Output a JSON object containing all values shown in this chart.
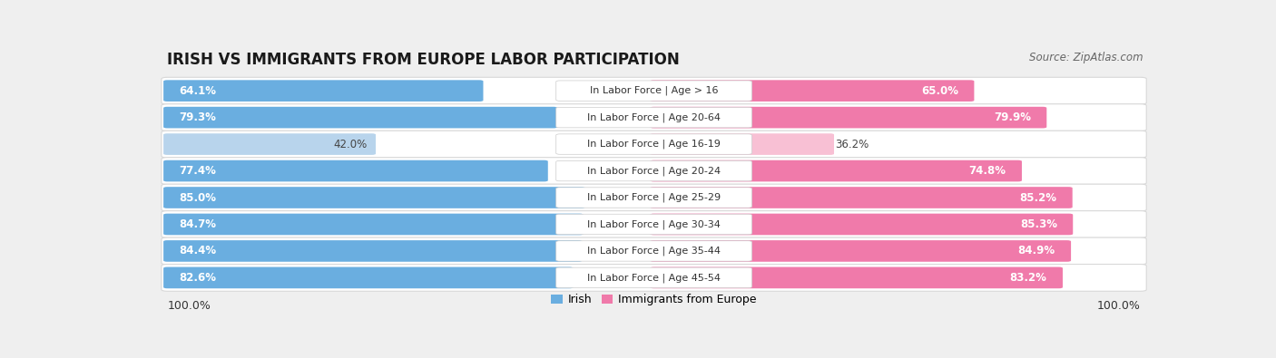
{
  "title": "IRISH VS IMMIGRANTS FROM EUROPE LABOR PARTICIPATION",
  "source": "Source: ZipAtlas.com",
  "categories": [
    "In Labor Force | Age > 16",
    "In Labor Force | Age 20-64",
    "In Labor Force | Age 16-19",
    "In Labor Force | Age 20-24",
    "In Labor Force | Age 25-29",
    "In Labor Force | Age 30-34",
    "In Labor Force | Age 35-44",
    "In Labor Force | Age 45-54"
  ],
  "irish_values": [
    64.1,
    79.3,
    42.0,
    77.4,
    85.0,
    84.7,
    84.4,
    82.6
  ],
  "immigrant_values": [
    65.0,
    79.9,
    36.2,
    74.8,
    85.2,
    85.3,
    84.9,
    83.2
  ],
  "irish_color": "#6aaee0",
  "irish_color_light": "#b8d4ec",
  "immigrant_color": "#f07aaa",
  "immigrant_color_light": "#f8c0d4",
  "bg_color": "#efefef",
  "row_bg_color": "#f8f8f8",
  "max_value": 100.0,
  "legend_irish": "Irish",
  "legend_immigrant": "Immigrants from Europe",
  "title_fontsize": 12,
  "source_fontsize": 8.5,
  "value_fontsize": 8.5,
  "category_fontsize": 8,
  "legend_fontsize": 9,
  "footer_label": "100.0%"
}
